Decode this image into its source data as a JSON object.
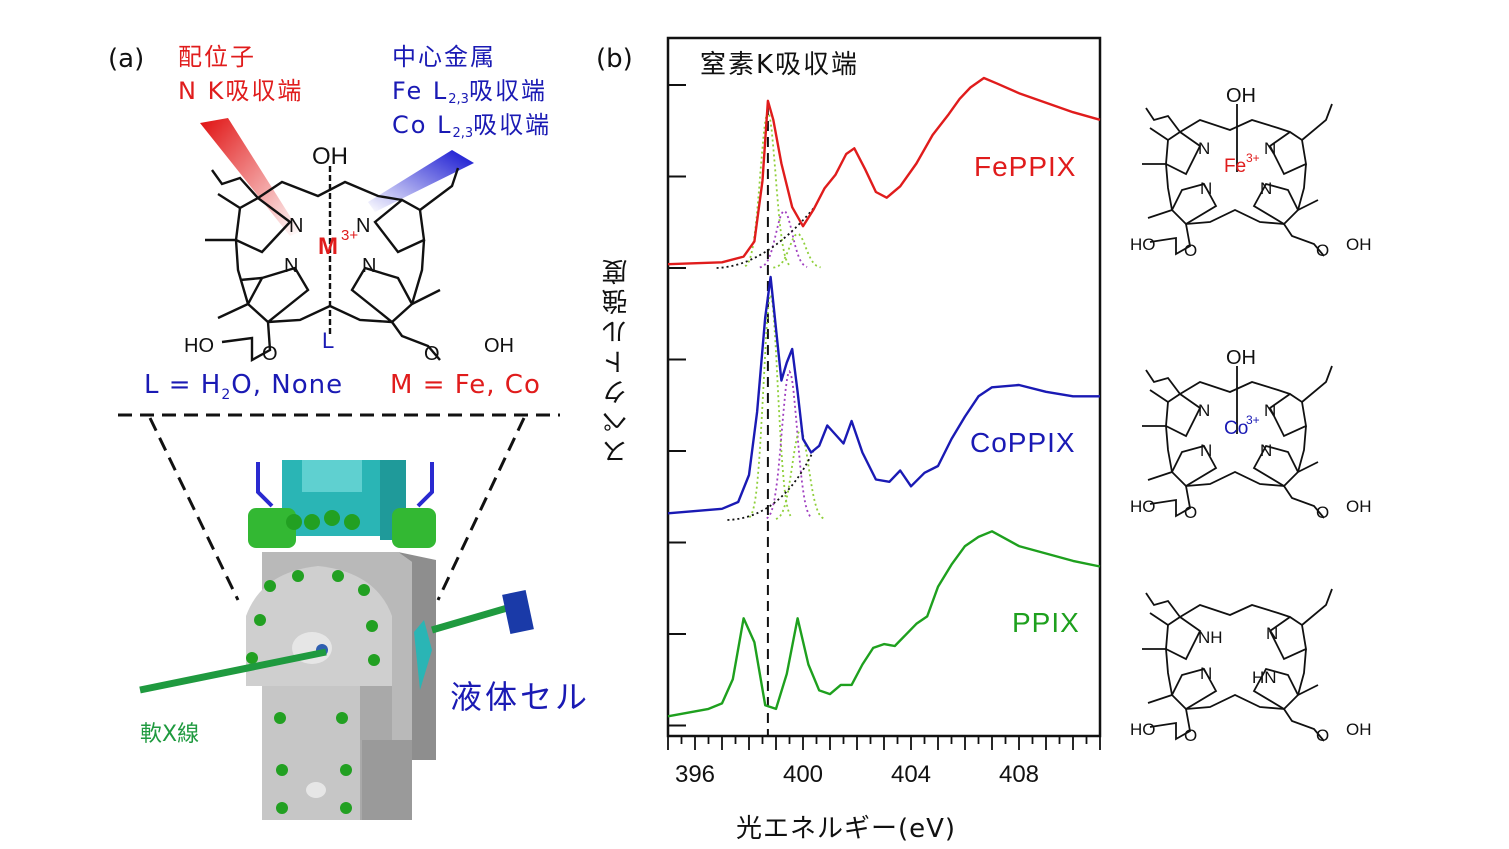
{
  "panel_a": {
    "label": "(a)",
    "ligand_title": "配位子",
    "ligand_edge": "N K吸収端",
    "metal_title": "中心金属",
    "metal_edge_fe": {
      "prefix": "Fe L",
      "sub": "2,3",
      "suffix": "吸収端"
    },
    "metal_edge_co": {
      "prefix": "Co L",
      "sub": "2,3",
      "suffix": "吸収端"
    },
    "structure": {
      "oh": "OH",
      "metal": "M",
      "metal_sup": "3+",
      "ligand_l": "L",
      "n": "N",
      "hooc_left": "HO",
      "hooc_right": "OH",
      "o": "O"
    },
    "legend_l": {
      "pre": "L = H",
      "sub": "2",
      "post": "O, None"
    },
    "legend_m": "M = Fe, Co",
    "xray_label": "軟X線",
    "cell_label": "液体セル"
  },
  "panel_b": {
    "label": "(b)",
    "edge_label": "窒素K吸収端"
  },
  "structures_right": [
    {
      "oh": "OH",
      "metal": "Fe",
      "sup": "3+",
      "hoL": "HO",
      "hoR": "OH",
      "o": "O",
      "n": "N"
    },
    {
      "oh": "OH",
      "metal": "Co",
      "sup": "3+",
      "hoL": "HO",
      "hoR": "OH",
      "o": "O",
      "n": "N"
    },
    {
      "nh": "NH",
      "hn": "HN",
      "hoL": "HO",
      "hoR": "OH",
      "o": "O",
      "n": "N"
    }
  ],
  "chart_data": {
    "type": "line",
    "title": "",
    "xlabel": "光エネルギー(eV)",
    "ylabel": "スペクトル強度",
    "xlim": [
      395,
      411
    ],
    "x_ticks": [
      396,
      400,
      404,
      408
    ],
    "reference_line_x": 398.7,
    "series": [
      {
        "name": "FePPIX",
        "color": "#e01c1c",
        "x": [
          395.0,
          397.0,
          397.8,
          398.2,
          398.5,
          398.7,
          398.9,
          399.2,
          399.6,
          400.0,
          400.4,
          400.8,
          401.2,
          401.6,
          401.9,
          402.3,
          402.7,
          403.1,
          403.6,
          404.2,
          404.8,
          405.4,
          405.8,
          406.2,
          406.7,
          407.2,
          408.0,
          409.0,
          410.0,
          411.0
        ],
        "y": [
          0.02,
          0.03,
          0.06,
          0.14,
          0.46,
          0.88,
          0.78,
          0.55,
          0.32,
          0.22,
          0.31,
          0.42,
          0.49,
          0.6,
          0.63,
          0.52,
          0.4,
          0.37,
          0.43,
          0.55,
          0.7,
          0.81,
          0.89,
          0.95,
          1.0,
          0.97,
          0.92,
          0.87,
          0.82,
          0.78
        ]
      },
      {
        "name": "CoPPIX",
        "color": "#1a1ab4",
        "x": [
          395.0,
          397.0,
          397.6,
          398.0,
          398.3,
          398.6,
          398.8,
          399.0,
          399.2,
          399.4,
          399.6,
          399.8,
          400.0,
          400.3,
          400.6,
          400.9,
          401.2,
          401.5,
          401.8,
          402.2,
          402.7,
          403.2,
          403.6,
          404.0,
          404.5,
          405.0,
          405.5,
          406.0,
          406.5,
          407.0,
          408.0,
          409.0,
          410.0,
          411.0
        ],
        "y": [
          0.03,
          0.05,
          0.08,
          0.2,
          0.48,
          0.9,
          1.08,
          0.85,
          0.62,
          0.7,
          0.76,
          0.57,
          0.36,
          0.3,
          0.33,
          0.42,
          0.38,
          0.34,
          0.44,
          0.3,
          0.18,
          0.17,
          0.22,
          0.15,
          0.21,
          0.24,
          0.36,
          0.46,
          0.55,
          0.59,
          0.6,
          0.57,
          0.55,
          0.55
        ]
      },
      {
        "name": "PPIX",
        "color": "#1ea01e",
        "x": [
          395.0,
          396.5,
          397.0,
          397.4,
          397.8,
          398.2,
          398.6,
          399.0,
          399.4,
          399.8,
          400.2,
          400.6,
          401.0,
          401.4,
          401.8,
          402.2,
          402.6,
          403.0,
          403.4,
          403.8,
          404.2,
          404.6,
          405.0,
          405.5,
          406.0,
          406.5,
          407.0,
          407.5,
          408.0,
          409.0,
          410.0,
          411.0
        ],
        "y": [
          0.02,
          0.06,
          0.09,
          0.22,
          0.55,
          0.42,
          0.08,
          0.06,
          0.25,
          0.55,
          0.3,
          0.16,
          0.14,
          0.19,
          0.19,
          0.3,
          0.39,
          0.41,
          0.4,
          0.46,
          0.52,
          0.56,
          0.72,
          0.84,
          0.94,
          0.99,
          1.02,
          0.98,
          0.94,
          0.9,
          0.86,
          0.83
        ]
      }
    ]
  }
}
